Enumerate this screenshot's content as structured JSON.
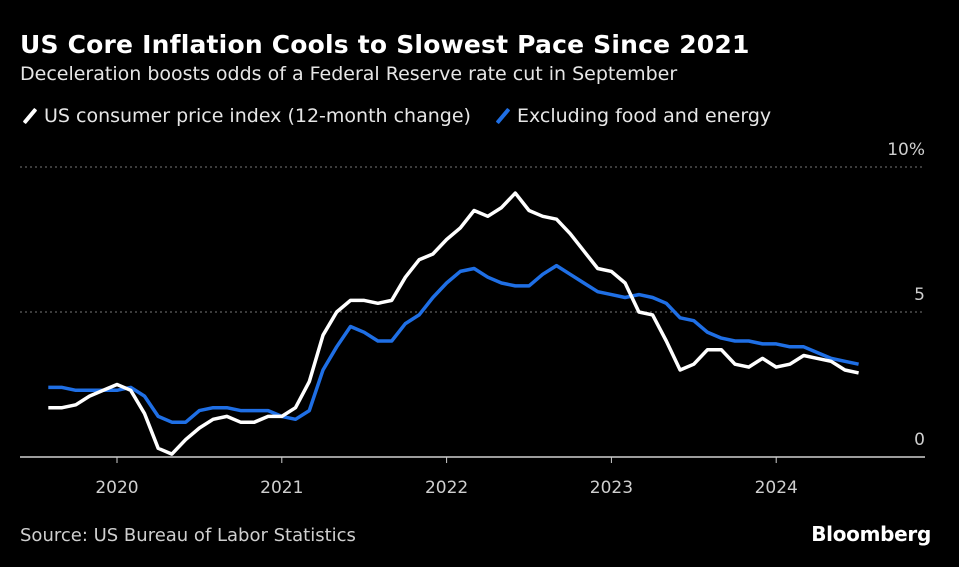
{
  "title": "US Core Inflation Cools to Slowest Pace Since 2021",
  "subtitle": "Deceleration boosts odds of a Federal Reserve rate cut in September",
  "source": "Source: US Bureau of Labor Statistics",
  "logo": "Bloomberg",
  "colors": {
    "cpi": "#ffffff",
    "core": "#1f6fe5",
    "grid": "#777777"
  },
  "chart_data": {
    "type": "line",
    "title": "US Core Inflation Cools to Slowest Pace Since 2021",
    "start": "2019-08",
    "frequency": "monthly",
    "ylim": [
      0,
      10
    ],
    "y_ticks": [
      {
        "value": 0,
        "label": "0"
      },
      {
        "value": 5,
        "label": "5"
      },
      {
        "value": 10,
        "label": "10%"
      }
    ],
    "x_ticks": [
      {
        "value": 2020,
        "label": "2020"
      },
      {
        "value": 2021,
        "label": "2021"
      },
      {
        "value": 2022,
        "label": "2022"
      },
      {
        "value": 2023,
        "label": "2023"
      },
      {
        "value": 2024,
        "label": "2024"
      }
    ],
    "legend_placement": "top-left",
    "series": [
      {
        "name": "US consumer price index (12-month change)",
        "values": [
          1.7,
          1.7,
          1.8,
          2.1,
          2.3,
          2.5,
          2.3,
          1.5,
          0.3,
          0.1,
          0.6,
          1.0,
          1.3,
          1.4,
          1.2,
          1.2,
          1.4,
          1.4,
          1.7,
          2.6,
          4.2,
          5.0,
          5.4,
          5.4,
          5.3,
          5.4,
          6.2,
          6.8,
          7.0,
          7.5,
          7.9,
          8.5,
          8.3,
          8.6,
          9.1,
          8.5,
          8.3,
          8.2,
          7.7,
          7.1,
          6.5,
          6.4,
          6.0,
          5.0,
          4.9,
          4.0,
          3.0,
          3.2,
          3.7,
          3.7,
          3.2,
          3.1,
          3.4,
          3.1,
          3.2,
          3.5,
          3.4,
          3.3,
          3.0,
          2.9
        ]
      },
      {
        "name": "Excluding food and energy",
        "values": [
          2.4,
          2.4,
          2.3,
          2.3,
          2.3,
          2.3,
          2.4,
          2.1,
          1.4,
          1.2,
          1.2,
          1.6,
          1.7,
          1.7,
          1.6,
          1.6,
          1.6,
          1.4,
          1.3,
          1.6,
          3.0,
          3.8,
          4.5,
          4.3,
          4.0,
          4.0,
          4.6,
          4.9,
          5.5,
          6.0,
          6.4,
          6.5,
          6.2,
          6.0,
          5.9,
          5.9,
          6.3,
          6.6,
          6.3,
          6.0,
          5.7,
          5.6,
          5.5,
          5.6,
          5.5,
          5.3,
          4.8,
          4.7,
          4.3,
          4.1,
          4.0,
          4.0,
          3.9,
          3.9,
          3.8,
          3.8,
          3.6,
          3.4,
          3.3,
          3.2
        ]
      }
    ]
  }
}
